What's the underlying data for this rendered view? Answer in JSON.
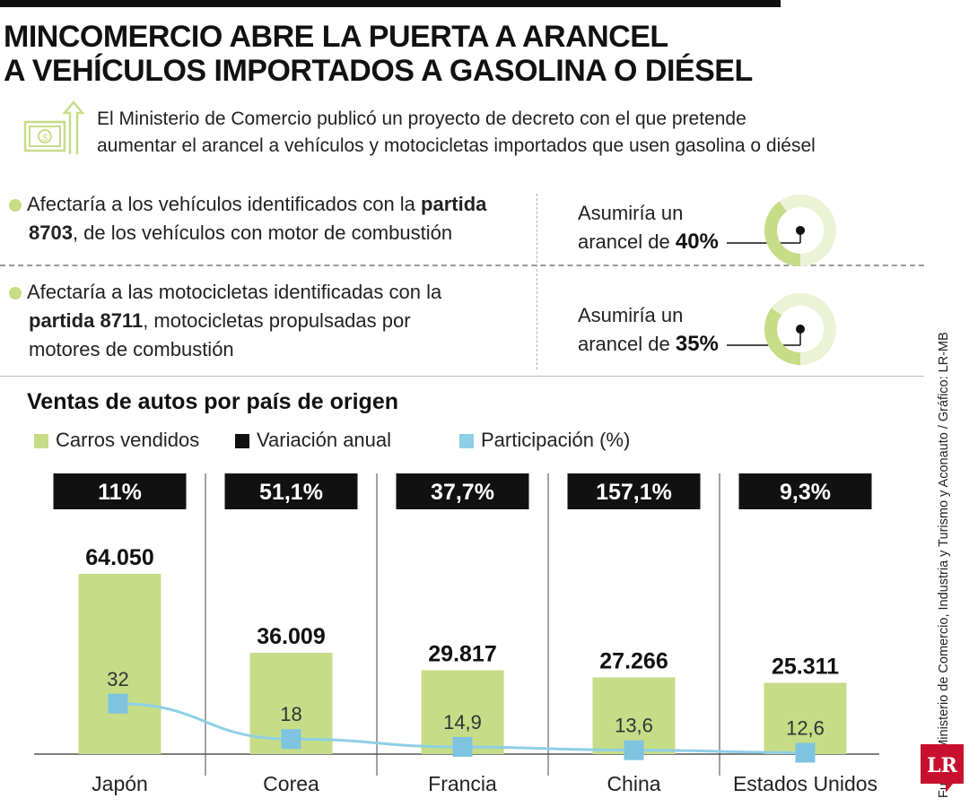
{
  "headline": {
    "line1": "MINCOMERCIO ABRE LA PUERTA A ARANCEL",
    "line2": "A VEHÍCULOS IMPORTADOS A GASOLINA O DIÉSEL"
  },
  "intro": {
    "icon": "money-arrow-icon",
    "line1": "El Ministerio de Comercio publicó un proyecto de decreto con el que pretende",
    "line2": "aumentar el arancel a vehículos y motocicletas importados que usen gasolina o diésel"
  },
  "items": [
    {
      "line1_pre": "Afectaría a los vehículos identificados con la ",
      "line1_bold": "partida",
      "line2_bold": "8703",
      "line2_post": ", de los vehículos con motor de combustión",
      "rate_line1": "Asumiría un",
      "rate_line2_pre": "arancel de ",
      "rate_value": "40%",
      "rate_fraction": 0.4
    },
    {
      "line1": "Afectaría a las motocicletas identificadas con la",
      "line2_bold": "partida 8711",
      "line2_post": ", motocicletas propulsadas por",
      "line3": "motores de combustión",
      "rate_line1": "Asumiría un",
      "rate_line2_pre": "arancel de ",
      "rate_value": "35%",
      "rate_fraction": 0.35
    }
  ],
  "chart_data": {
    "type": "bar",
    "title": "Ventas de autos por país de origen",
    "legend": [
      {
        "label": "Carros vendidos",
        "color": "#c6dc87"
      },
      {
        "label": "Variación anual",
        "color": "#111111"
      },
      {
        "label": "Participación (%)",
        "color": "#8ecfe6"
      }
    ],
    "categories": [
      "Japón",
      "Corea",
      "Francia",
      "China",
      "Estados Unidos"
    ],
    "series": [
      {
        "name": "Carros vendidos",
        "values": [
          64050,
          36009,
          29817,
          27266,
          25311
        ],
        "labels": [
          "64.050",
          "36.009",
          "29.817",
          "27.266",
          "25.311"
        ]
      },
      {
        "name": "Variación anual",
        "values": [
          11,
          51.1,
          37.7,
          157.1,
          9.3
        ],
        "labels": [
          "11%",
          "51,1%",
          "37,7%",
          "157,1%",
          "9,3%"
        ]
      },
      {
        "name": "Participación (%)",
        "values": [
          32,
          18,
          14.9,
          13.6,
          12.6
        ],
        "labels": [
          "32",
          "18",
          "14,9",
          "13,6",
          "12,6"
        ]
      }
    ],
    "colors": {
      "bar": "#c6dc87",
      "line": "#8ecfe6",
      "marker": "#7ec4e0",
      "badge": "#111111"
    }
  },
  "source": "Fuente: Ministerio de Comercio, Industria y Turismo y Aconauto / Gráfico: LR-MB",
  "logo": "LR"
}
